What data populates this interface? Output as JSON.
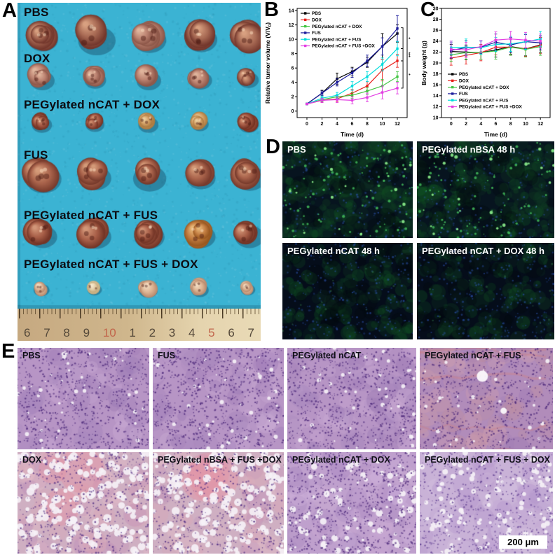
{
  "figure": {
    "panel_a": {
      "label": "A",
      "rows": [
        {
          "label": "PBS"
        },
        {
          "label": "DOX"
        },
        {
          "label": "PEGylated nCAT + DOX"
        },
        {
          "label": "FUS"
        },
        {
          "label": "PEGylated nCAT + FUS"
        },
        {
          "label": "PEGylated nCAT + FUS + DOX"
        }
      ],
      "ruler_numbers": [
        "6",
        "7",
        "8",
        "9",
        "10",
        "1",
        "2",
        "3",
        "4",
        "5",
        "6",
        "7"
      ],
      "ruler_red_numbers": [
        "10",
        "5"
      ]
    },
    "panel_b": {
      "label": "B"
    },
    "panel_c": {
      "label": "C"
    },
    "panel_d": {
      "label": "D",
      "tiles": [
        {
          "label": "PBS",
          "style": "green"
        },
        {
          "label": "PEGylated nBSA 48 h",
          "style": "green"
        },
        {
          "label": "PEGylated nCAT 48 h",
          "style": "blue"
        },
        {
          "label": "PEGylated nCAT + DOX 48 h",
          "style": "blue"
        }
      ]
    },
    "panel_e": {
      "label": "E",
      "tiles": [
        {
          "label": "PBS",
          "style": "dense"
        },
        {
          "label": "FUS",
          "style": "dense"
        },
        {
          "label": "PEGylated nCAT",
          "style": "dense"
        },
        {
          "label": "PEGylated nCAT + FUS",
          "style": "dense-red"
        },
        {
          "label": "DOX",
          "style": "necrotic"
        },
        {
          "label": "PEGylated nBSA + FUS +DOX",
          "style": "necrotic"
        },
        {
          "label": "PEGylated nCAT + DOX",
          "style": "mixed"
        },
        {
          "label": "PEGylated nCAT + FUS + DOX",
          "style": "sparse"
        }
      ],
      "scale_bar": "200 μm"
    }
  },
  "chart_data": [
    {
      "id": "tumor-volume",
      "type": "line",
      "title": "",
      "xlabel": "Time (d)",
      "ylabel": "Relative tumor volume (V/V0)",
      "x": [
        0,
        2,
        4,
        6,
        8,
        10,
        12
      ],
      "xlim": [
        -1.3,
        13.3
      ],
      "ylim": [
        -0.9,
        14.3
      ],
      "xticks": [
        0,
        2,
        4,
        6,
        8,
        10,
        12
      ],
      "yticks": [
        0,
        2,
        4,
        6,
        8,
        10,
        12,
        14
      ],
      "legend_position": "top-left",
      "series": [
        {
          "name": "PBS",
          "color": "#000000",
          "values": [
            1.0,
            2.5,
            4.5,
            5.5,
            6.8,
            9.0,
            10.8
          ],
          "err": [
            0.1,
            0.4,
            0.8,
            0.6,
            0.7,
            1.8,
            1.2
          ]
        },
        {
          "name": "DOX",
          "color": "#e8201c",
          "values": [
            1.0,
            1.5,
            1.7,
            2.5,
            3.5,
            5.7,
            7.0
          ],
          "err": [
            0.1,
            0.3,
            0.4,
            0.5,
            0.6,
            1.5,
            0.9
          ]
        },
        {
          "name": "PEGylated nCAT + DOX",
          "color": "#44c544",
          "values": [
            1.0,
            1.6,
            2.0,
            2.2,
            2.8,
            3.5,
            4.8
          ],
          "err": [
            0.1,
            0.3,
            0.3,
            0.4,
            0.5,
            0.9,
            0.7
          ]
        },
        {
          "name": "FUS",
          "color": "#1c1c9c",
          "values": [
            1.0,
            2.5,
            4.0,
            5.3,
            7.0,
            9.0,
            11.5
          ],
          "err": [
            0.1,
            0.3,
            0.5,
            0.6,
            0.8,
            1.2,
            1.8
          ]
        },
        {
          "name": "PEGylated nCAT + FUS",
          "color": "#00dcdc",
          "values": [
            1.0,
            1.8,
            2.2,
            3.5,
            4.8,
            6.5,
            8.7
          ],
          "err": [
            0.1,
            0.3,
            0.4,
            0.6,
            0.7,
            0.9,
            1.0
          ]
        },
        {
          "name": "PEGylated nCAT + FUS +DOX",
          "color": "#e33ee3",
          "values": [
            1.0,
            1.5,
            1.6,
            1.5,
            1.9,
            2.6,
            3.2
          ],
          "err": [
            0.1,
            0.3,
            0.4,
            0.5,
            0.6,
            0.9,
            0.8
          ]
        }
      ],
      "annotations": [
        {
          "label": "*",
          "span": [
            11.6,
            8.7
          ]
        },
        {
          "label": "***",
          "span": [
            8.7,
            7.0
          ]
        },
        {
          "label": "*",
          "span": [
            7.0,
            3.2
          ]
        }
      ]
    },
    {
      "id": "body-weight",
      "type": "line",
      "title": "",
      "xlabel": "Time (d)",
      "ylabel": "Body weight (g)",
      "x": [
        0,
        2,
        4,
        6,
        8,
        10,
        12
      ],
      "xlim": [
        -1.3,
        13.3
      ],
      "ylim": [
        10,
        30
      ],
      "xticks": [
        0,
        2,
        4,
        6,
        8,
        10,
        12
      ],
      "yticks": [
        10,
        12,
        14,
        16,
        18,
        20,
        22,
        24,
        26,
        28,
        30
      ],
      "legend_position": "bottom-left",
      "series": [
        {
          "name": "PBS",
          "color": "#000000",
          "values": [
            22.1,
            22.0,
            21.9,
            22.4,
            23.0,
            22.6,
            23.3
          ],
          "err": [
            1.3,
            1.3,
            1.2,
            1.3,
            1.4,
            1.3,
            1.4
          ]
        },
        {
          "name": "DOX",
          "color": "#e8201c",
          "values": [
            20.9,
            21.4,
            21.9,
            22.9,
            22.9,
            22.6,
            23.2
          ],
          "err": [
            1.3,
            1.6,
            1.5,
            1.4,
            1.5,
            1.4,
            1.5
          ]
        },
        {
          "name": "PEGylated nCAT + DOX",
          "color": "#44c544",
          "values": [
            21.5,
            21.9,
            21.9,
            22.2,
            22.9,
            22.5,
            23.0
          ],
          "err": [
            1.2,
            1.3,
            1.2,
            1.5,
            1.5,
            1.4,
            1.6
          ]
        },
        {
          "name": "FUS",
          "color": "#1c1c9c",
          "values": [
            22.3,
            22.8,
            22.9,
            23.8,
            23.3,
            23.9,
            23.7
          ],
          "err": [
            1.4,
            1.3,
            1.2,
            1.5,
            1.4,
            1.3,
            1.3
          ]
        },
        {
          "name": "PEGylated nCAT + FUS",
          "color": "#00dcdc",
          "values": [
            22.8,
            22.9,
            22.8,
            23.4,
            23.5,
            23.9,
            24.4
          ],
          "err": [
            1.2,
            1.5,
            1.2,
            1.3,
            1.4,
            1.4,
            1.4
          ]
        },
        {
          "name": "PEGylated nCAT + FUS +DOX",
          "color": "#e33ee3",
          "values": [
            22.5,
            22.4,
            23.0,
            24.2,
            24.4,
            24.2,
            24.0
          ],
          "err": [
            1.5,
            1.4,
            1.1,
            1.5,
            1.4,
            1.4,
            1.3
          ]
        }
      ],
      "annotations": []
    }
  ]
}
